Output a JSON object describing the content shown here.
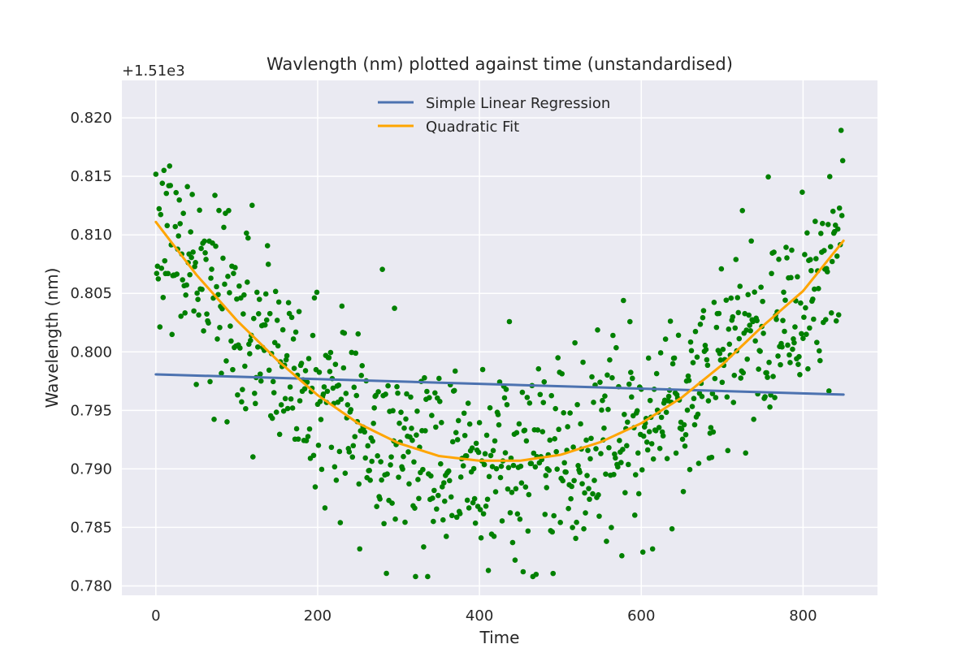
{
  "chart_data": {
    "type": "scatter",
    "title": "Wavlength (nm) plotted against time (unstandardised)",
    "xlabel": "Time",
    "ylabel": "Wavelength (nm)",
    "offset_label": "+1.51e3",
    "xlim": [
      -42,
      892
    ],
    "ylim": [
      0.7792,
      0.8232
    ],
    "x_ticks": [
      0,
      200,
      400,
      600,
      800
    ],
    "x_tick_labels": [
      "0",
      "200",
      "400",
      "600",
      "800"
    ],
    "y_ticks": [
      0.78,
      0.785,
      0.79,
      0.795,
      0.8,
      0.805,
      0.81,
      0.815,
      0.82
    ],
    "y_tick_labels": [
      "0.780",
      "0.785",
      "0.790",
      "0.795",
      "0.800",
      "0.805",
      "0.810",
      "0.815",
      "0.820"
    ],
    "grid": true,
    "legend_position": "top-center",
    "n_points": 850,
    "scatter_color": "#008000",
    "series": [
      {
        "name": "Simple Linear Regression",
        "color": "#4c72b0",
        "x": [
          0,
          850
        ],
        "y": [
          0.79808,
          0.79635
        ]
      },
      {
        "name": "Quadratic Fit",
        "color": "#ffa500",
        "x": [
          0,
          50,
          100,
          150,
          200,
          250,
          300,
          350,
          400,
          450,
          500,
          550,
          600,
          650,
          700,
          750,
          800,
          850
        ],
        "y": [
          0.8111,
          0.8066,
          0.8027,
          0.7993,
          0.7963,
          0.7939,
          0.7922,
          0.7911,
          0.7907,
          0.7907,
          0.7912,
          0.7923,
          0.7939,
          0.7961,
          0.7989,
          0.8022,
          0.8052,
          0.8095
        ]
      }
    ]
  }
}
